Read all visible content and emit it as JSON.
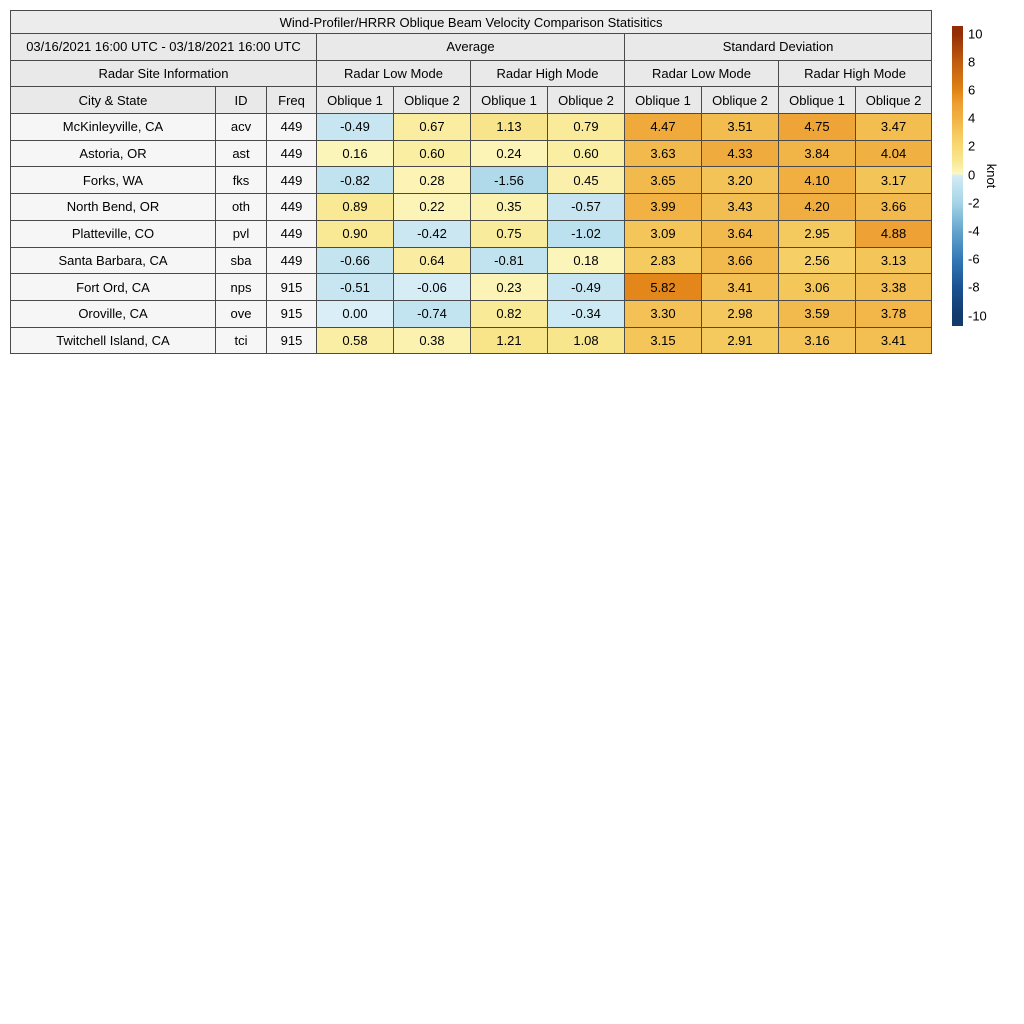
{
  "chart_data": {
    "type": "table",
    "title": "Wind-Profiler/HRRR Oblique Beam Velocity Comparison Statisitics",
    "date_range": "03/16/2021 16:00 UTC - 03/18/2021 16:00 UTC",
    "group_headers": {
      "average": "Average",
      "std": "Standard Deviation"
    },
    "section_header_left": "Radar Site Information",
    "mode_headers": [
      "Radar Low Mode",
      "Radar High Mode",
      "Radar Low Mode",
      "Radar High Mode"
    ],
    "columns": [
      "City & State",
      "ID",
      "Freq",
      "Oblique 1",
      "Oblique 2",
      "Oblique 1",
      "Oblique 2",
      "Oblique 1",
      "Oblique 2",
      "Oblique 1",
      "Oblique 2"
    ],
    "rows": [
      {
        "city": "McKinleyville, CA",
        "id": "acv",
        "freq": "449",
        "values": [
          -0.49,
          0.67,
          1.13,
          0.79,
          4.47,
          3.51,
          4.75,
          3.47
        ]
      },
      {
        "city": "Astoria, OR",
        "id": "ast",
        "freq": "449",
        "values": [
          0.16,
          0.6,
          0.24,
          0.6,
          3.63,
          4.33,
          3.84,
          4.04
        ]
      },
      {
        "city": "Forks, WA",
        "id": "fks",
        "freq": "449",
        "values": [
          -0.82,
          0.28,
          -1.56,
          0.45,
          3.65,
          3.2,
          4.1,
          3.17
        ]
      },
      {
        "city": "North Bend, OR",
        "id": "oth",
        "freq": "449",
        "values": [
          0.89,
          0.22,
          0.35,
          -0.57,
          3.99,
          3.43,
          4.2,
          3.66
        ]
      },
      {
        "city": "Platteville, CO",
        "id": "pvl",
        "freq": "449",
        "values": [
          0.9,
          -0.42,
          0.75,
          -1.02,
          3.09,
          3.64,
          2.95,
          4.88
        ]
      },
      {
        "city": "Santa Barbara, CA",
        "id": "sba",
        "freq": "449",
        "values": [
          -0.66,
          0.64,
          -0.81,
          0.18,
          2.83,
          3.66,
          2.56,
          3.13
        ]
      },
      {
        "city": "Fort Ord, CA",
        "id": "nps",
        "freq": "915",
        "values": [
          -0.51,
          -0.06,
          0.23,
          -0.49,
          5.82,
          3.41,
          3.06,
          3.38
        ]
      },
      {
        "city": "Oroville, CA",
        "id": "ove",
        "freq": "915",
        "values": [
          0.0,
          -0.74,
          0.82,
          -0.34,
          3.3,
          2.98,
          3.59,
          3.78
        ]
      },
      {
        "city": "Twitchell Island, CA",
        "id": "tci",
        "freq": "915",
        "values": [
          0.58,
          0.38,
          1.21,
          1.08,
          3.15,
          2.91,
          3.16,
          3.41
        ]
      }
    ],
    "colorbar": {
      "label": "knot",
      "ticks": [
        "10",
        "8",
        "6",
        "4",
        "2",
        "0",
        "-2",
        "-4",
        "-6",
        "-8",
        "-10"
      ],
      "range": [
        -10,
        10
      ],
      "colormap_positive": [
        [
          0,
          "#fdf8c2"
        ],
        [
          1,
          "#f8e78f"
        ],
        [
          2,
          "#f8d974"
        ],
        [
          3,
          "#f4c85c"
        ],
        [
          4,
          "#f1b143"
        ],
        [
          5,
          "#ee9f33"
        ],
        [
          6,
          "#e08214"
        ],
        [
          8,
          "#bf5b10"
        ],
        [
          10,
          "#942d05"
        ]
      ],
      "colormap_negative": [
        [
          -10,
          "#123a6d"
        ],
        [
          -8,
          "#1a5292"
        ],
        [
          -6,
          "#3379b7"
        ],
        [
          -4,
          "#64a5cd"
        ],
        [
          -2,
          "#a6d4e7"
        ],
        [
          -1,
          "#bce1ee"
        ],
        [
          -0.5,
          "#c8e6f1"
        ],
        [
          0,
          "#d9eef6"
        ]
      ]
    }
  },
  "colors": {
    "header_bg": "#e9e9e9",
    "title_bg": "#ececec",
    "label_bg": "#f6f6f6",
    "border": "#4a4a4a"
  }
}
